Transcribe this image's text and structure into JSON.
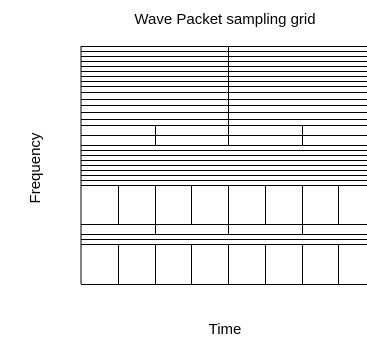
{
  "diagram": {
    "title": "Wave Packet sampling grid",
    "xlabel": "Time",
    "ylabel": "Frequency",
    "line_color": "#000000",
    "background": "#ffffff"
  },
  "chart_data": {
    "type": "heatmap",
    "title": "Wave Packet sampling grid",
    "xlabel": "Time",
    "ylabel": "Frequency",
    "xlim": [
      0,
      1
    ],
    "ylim": [
      0,
      1
    ],
    "grid": false,
    "description_note": "",
    "bands": [
      {
        "height": 8,
        "cols": 2,
        "rows": 8
      },
      {
        "height": 8,
        "cols": 2,
        "rows": 6
      },
      {
        "height": 4,
        "cols": 4,
        "rows": 2
      },
      {
        "height": 8,
        "cols": 1,
        "rows": 8
      },
      {
        "height": 8,
        "cols": 8,
        "rows": 1
      },
      {
        "height": 2,
        "cols": 4,
        "rows": 1
      },
      {
        "height": 2,
        "cols": 1,
        "rows": 2
      },
      {
        "height": 8,
        "cols": 8,
        "rows": 1
      }
    ]
  }
}
